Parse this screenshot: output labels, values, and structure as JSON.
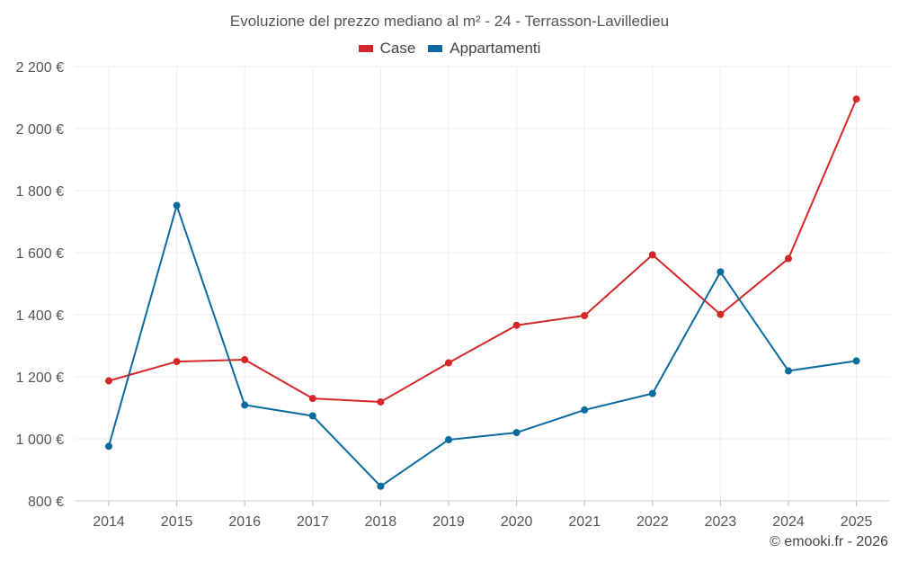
{
  "chart_data": {
    "type": "line",
    "title": "Evoluzione del prezzo mediano al m² - 24 - Terrasson-Lavilledieu",
    "categories": [
      "2014",
      "2015",
      "2016",
      "2017",
      "2018",
      "2019",
      "2020",
      "2021",
      "2022",
      "2023",
      "2024",
      "2025"
    ],
    "series": [
      {
        "name": "Case",
        "color": "#d62728",
        "values": [
          1187,
          1249,
          1255,
          1130,
          1119,
          1245,
          1366,
          1397,
          1593,
          1401,
          1581,
          2095
        ]
      },
      {
        "name": "Appartamenti",
        "color": "#0b6a9e",
        "values": [
          976,
          1752,
          1109,
          1074,
          847,
          997,
          1020,
          1093,
          1146,
          1538,
          1219,
          1251
        ]
      }
    ],
    "ylim": [
      800,
      2200
    ],
    "yticks": [
      800,
      1000,
      1200,
      1400,
      1600,
      1800,
      2000,
      2200
    ],
    "ytick_labels": [
      "800 €",
      "1 000 €",
      "1 200 €",
      "1 400 €",
      "1 600 €",
      "1 800 €",
      "2 000 €",
      "2 200 €"
    ],
    "legend_position": "top-center",
    "grid": true
  },
  "footer": {
    "copyright": "© emooki.fr - 2026"
  }
}
